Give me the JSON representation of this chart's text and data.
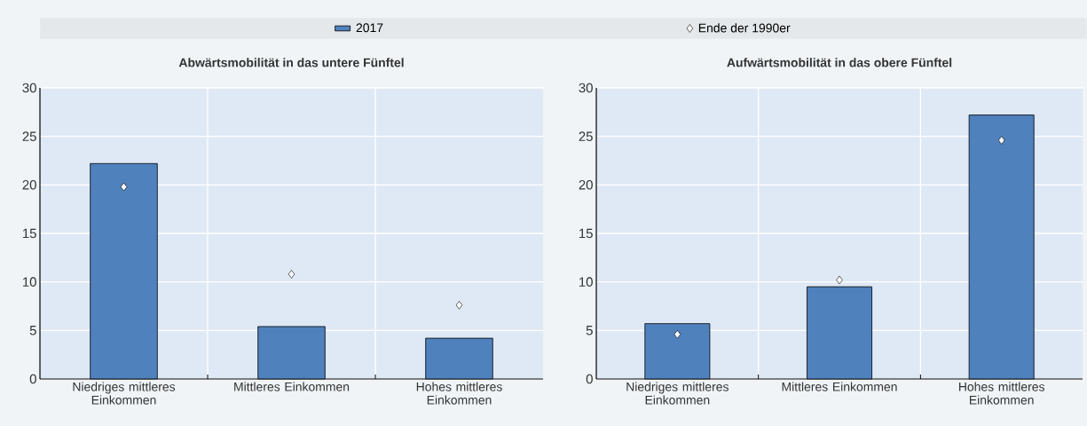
{
  "chart_data": [
    {
      "type": "bar",
      "title": "Abwärtsmobilität in das untere Fünftel",
      "categories": [
        "Niedriges mittleres Einkommen",
        "Mittleres Einkommen",
        "Hohes mittleres Einkommen"
      ],
      "ylim": [
        0,
        30
      ],
      "yticks": [
        0,
        5,
        10,
        15,
        20,
        25,
        30
      ],
      "grid": true,
      "legend": "top",
      "series": [
        {
          "name": "2017",
          "color": "#4f81bd",
          "values": [
            22.2,
            5.4,
            4.2
          ]
        },
        {
          "name": "Ende der 1990er",
          "type": "scatter",
          "marker": "diamond",
          "color": "#ffffff",
          "x": [
            "Niedriges mittleres Einkommen",
            "Mittleres Einkommen",
            "Hohes mittleres Einkommen"
          ],
          "values": [
            19.8,
            10.8,
            7.6
          ]
        }
      ]
    },
    {
      "type": "bar",
      "title": "Aufwärtsmobilität in das obere Fünftel",
      "categories": [
        "Niedriges mittleres Einkommen",
        "Mittleres Einkommen",
        "Hohes mittleres Einkommen"
      ],
      "ylim": [
        0,
        30
      ],
      "yticks": [
        0,
        5,
        10,
        15,
        20,
        25,
        30
      ],
      "grid": true,
      "series": [
        {
          "color": "#4f81bd",
          "values": [
            5.7,
            9.5,
            27.2
          ]
        },
        {
          "type": "scatter",
          "marker": "diamond",
          "color": "#ffffff",
          "x": [
            "Niedriges mittleres Einkommen",
            "Mittleres Einkommen",
            "Hohes mittleres Einkommen"
          ],
          "values": [
            4.6,
            10.2,
            24.6
          ]
        }
      ]
    }
  ]
}
